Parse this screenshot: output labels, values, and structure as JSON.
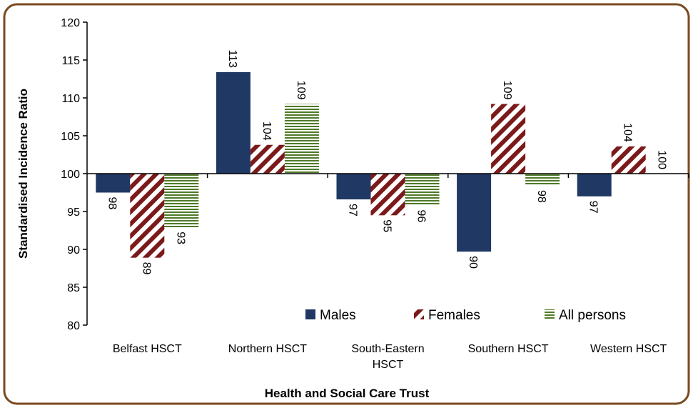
{
  "chart_data": {
    "type": "bar",
    "categories": [
      "Belfast HSCT",
      "Northern HSCT",
      "South-Eastern HSCT",
      "Southern HSCT",
      "Western HSCT"
    ],
    "series": [
      {
        "name": "Males",
        "color": "#1f3864",
        "pattern": "solid",
        "values": [
          97.5,
          113.4,
          96.6,
          89.7,
          97.0
        ],
        "value_labels": [
          "98",
          "113",
          "97",
          "90",
          "97"
        ]
      },
      {
        "name": "Females",
        "color": "#7b1a1a",
        "pattern": "diagonal",
        "values": [
          88.9,
          103.8,
          94.5,
          109.2,
          103.6
        ],
        "value_labels": [
          "89",
          "104",
          "95",
          "109",
          "104"
        ]
      },
      {
        "name": "All persons",
        "color": "#4f7a28",
        "pattern": "horizontal",
        "values": [
          92.9,
          109.2,
          95.8,
          98.4,
          100.0
        ],
        "value_labels": [
          "93",
          "109",
          "96",
          "98",
          "100"
        ]
      }
    ],
    "x_label": "Health and Social Care Trust",
    "y_label": "Standardised Incidence Ratio",
    "ylim": [
      80,
      120
    ],
    "yticks": [
      80,
      85,
      90,
      95,
      100,
      105,
      110,
      115,
      120
    ],
    "baseline": 100,
    "grid": false,
    "legend": "bottom"
  }
}
